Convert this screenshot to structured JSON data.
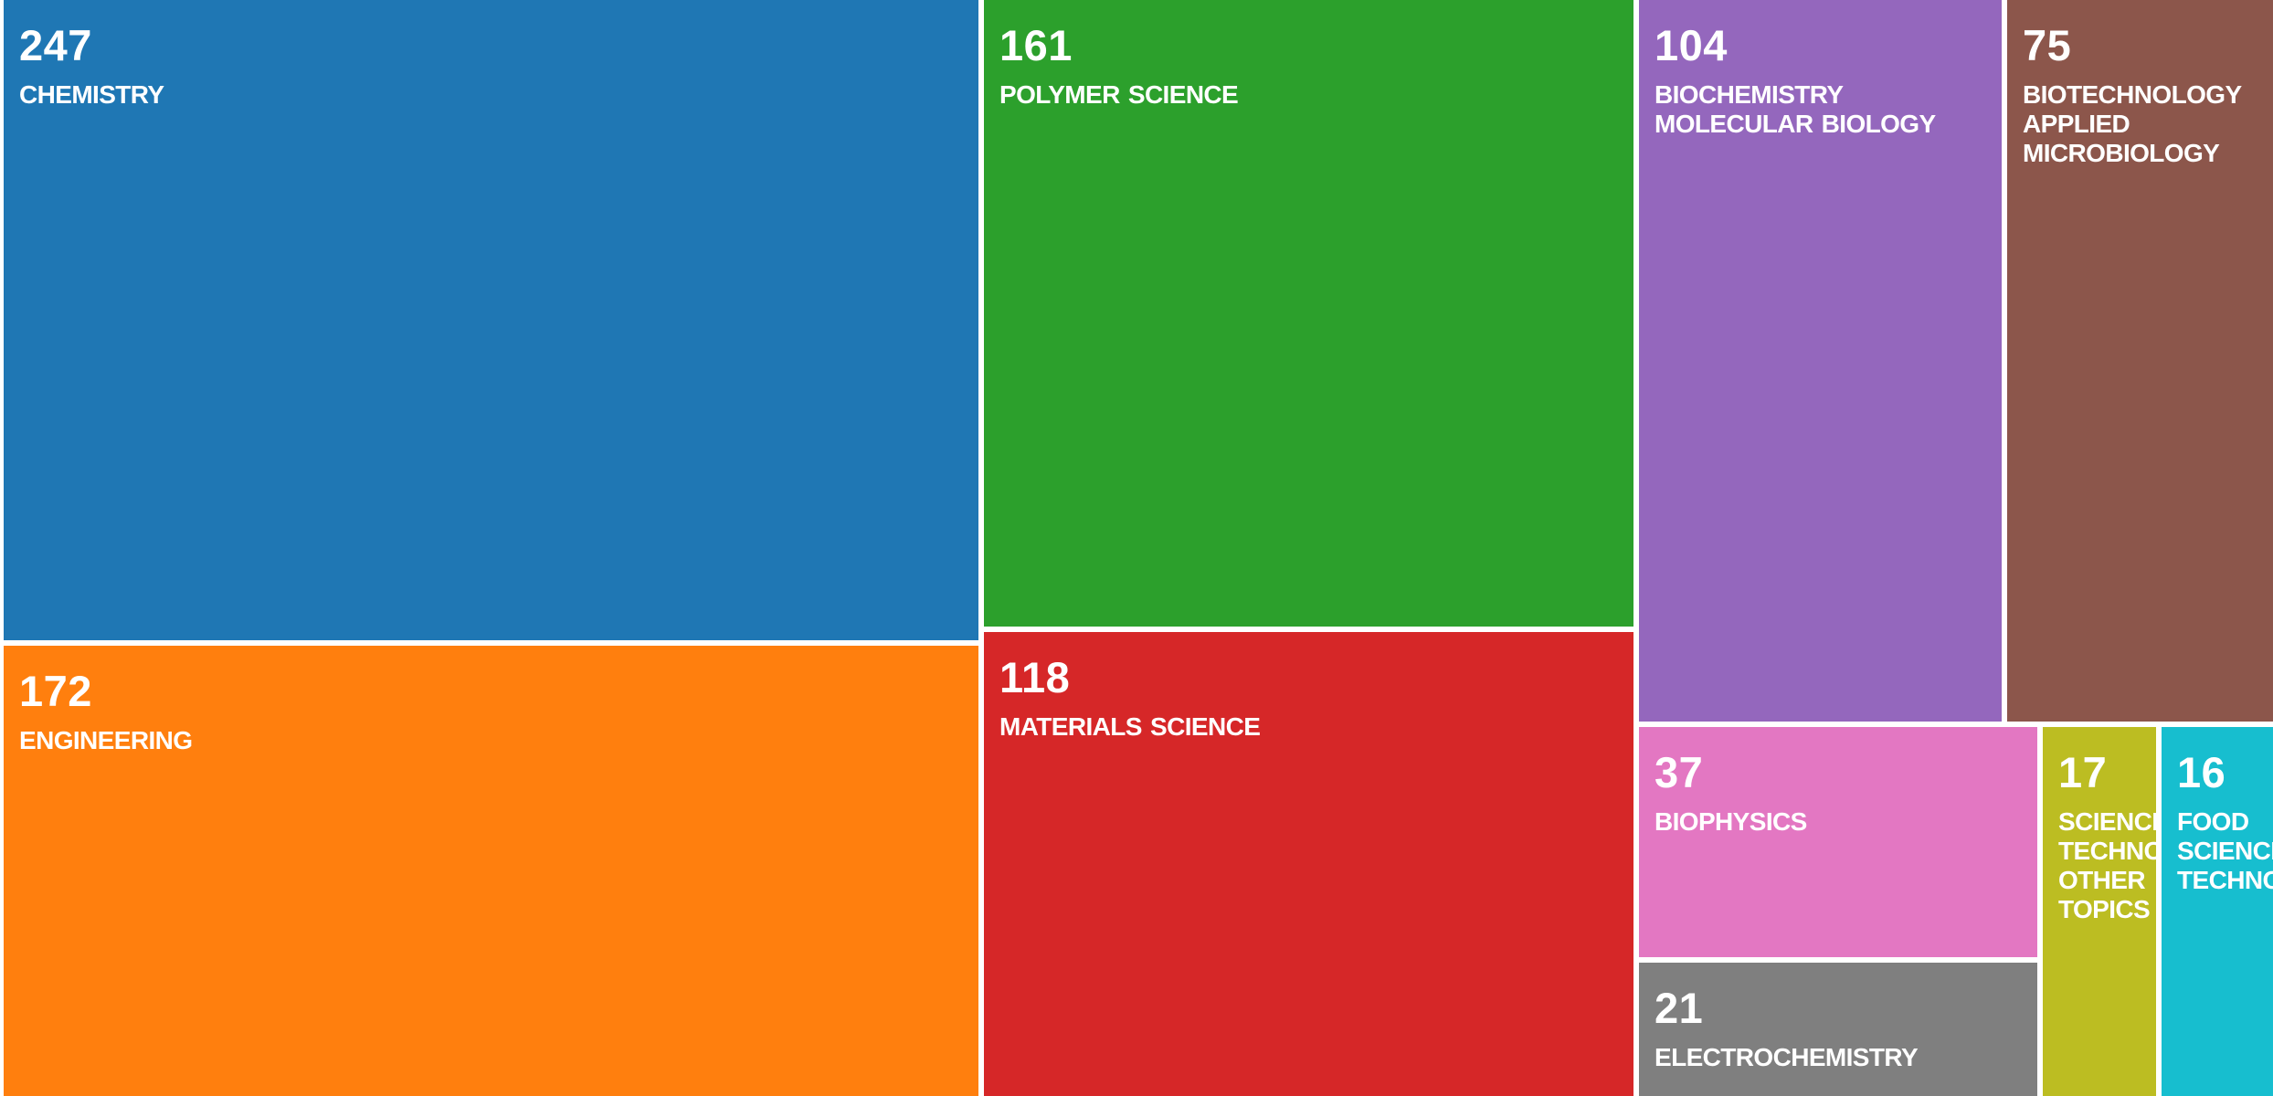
{
  "chart_data": {
    "type": "treemap",
    "categories": [
      "CHEMISTRY",
      "ENGINEERING",
      "POLYMER SCIENCE",
      "MATERIALS SCIENCE",
      "BIOCHEMISTRY MOLECULAR BIOLOGY",
      "BIOTECHNOLOGY APPLIED MICROBIOLOGY",
      "BIOPHYSICS",
      "ELECTROCHEMISTRY",
      "SCIENCE TECHNOLOGY OTHER TOPICS",
      "FOOD SCIENCE TECHNOLOGY"
    ],
    "values": [
      247,
      172,
      161,
      118,
      104,
      75,
      37,
      21,
      17,
      16
    ],
    "colors": [
      "#1f77b4",
      "#ff7f0e",
      "#2ca02c",
      "#d62728",
      "#9467bd",
      "#8c564b",
      "#e377c2",
      "#7f7f7f",
      "#bcbd22",
      "#17becf"
    ]
  }
}
